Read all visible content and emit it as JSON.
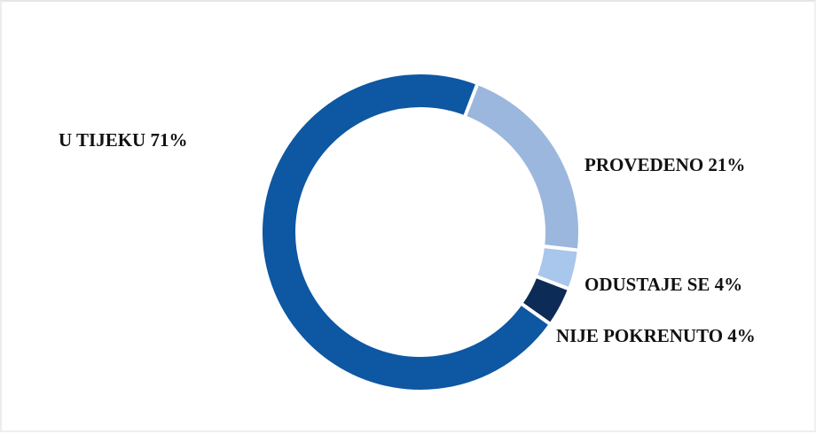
{
  "chart_data": {
    "type": "pie",
    "variant": "donut",
    "title": "",
    "legend": "none",
    "slices": [
      {
        "label": "PROVEDENO",
        "value": 21,
        "text": "PROVEDENO 21%",
        "color": "#9bb7dd"
      },
      {
        "label": "ODUSTAJE SE",
        "value": 4,
        "text": "ODUSTAJE SE 4%",
        "color": "#a9c6ec"
      },
      {
        "label": "NIJE POKRENUTO",
        "value": 4,
        "text": "NIJE POKRENUTO 4%",
        "color": "#0d2b57"
      },
      {
        "label": "U TIJEKU",
        "value": 71,
        "text": "U TIJEKU 71%",
        "color": "#0e57a2"
      }
    ]
  }
}
